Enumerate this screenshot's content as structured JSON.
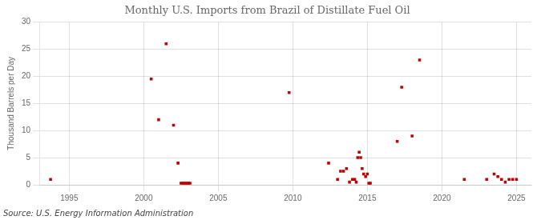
{
  "chart_data": {
    "type": "scatter",
    "title": "Monthly U.S. Imports from Brazil of Distillate Fuel Oil",
    "ylabel": "Thousand Barrels per Day",
    "source": "Source: U.S. Energy Information Administration",
    "x": [
      1993.75,
      2000.5,
      2001.0,
      2001.5,
      2002.0,
      2002.3,
      2002.5,
      2002.6,
      2002.7,
      2002.8,
      2002.9,
      2003.0,
      2003.1,
      2009.75,
      2012.4,
      2013.0,
      2013.2,
      2013.4,
      2013.6,
      2013.8,
      2014.0,
      2014.15,
      2014.25,
      2014.35,
      2014.45,
      2014.55,
      2014.65,
      2014.75,
      2014.88,
      2015.0,
      2015.1,
      2015.2,
      2017.0,
      2017.3,
      2018.0,
      2018.5,
      2021.5,
      2023.0,
      2023.5,
      2023.75,
      2024.0,
      2024.25,
      2024.5,
      2024.75,
      2025.0
    ],
    "values": [
      1.0,
      19.5,
      12.0,
      26.0,
      11.0,
      4.0,
      0.3,
      0.3,
      0.3,
      0.3,
      0.3,
      0.3,
      0.3,
      17.0,
      4.0,
      1.0,
      2.5,
      2.5,
      3.0,
      0.5,
      1.0,
      1.0,
      0.5,
      5.0,
      6.0,
      5.0,
      3.0,
      2.0,
      1.5,
      2.0,
      0.3,
      0.3,
      8.0,
      18.0,
      9.0,
      23.0,
      1.0,
      1.0,
      2.0,
      1.5,
      1.0,
      0.5,
      1.0,
      1.0,
      1.0
    ],
    "color": "#c00000",
    "marker": "square",
    "xlim": [
      1993.0,
      2026.0
    ],
    "ylim": [
      0,
      30
    ],
    "xticks": [
      1995,
      2000,
      2005,
      2010,
      2015,
      2020,
      2025
    ],
    "yticks": [
      0,
      5,
      10,
      15,
      20,
      25,
      30
    ],
    "grid": true
  }
}
